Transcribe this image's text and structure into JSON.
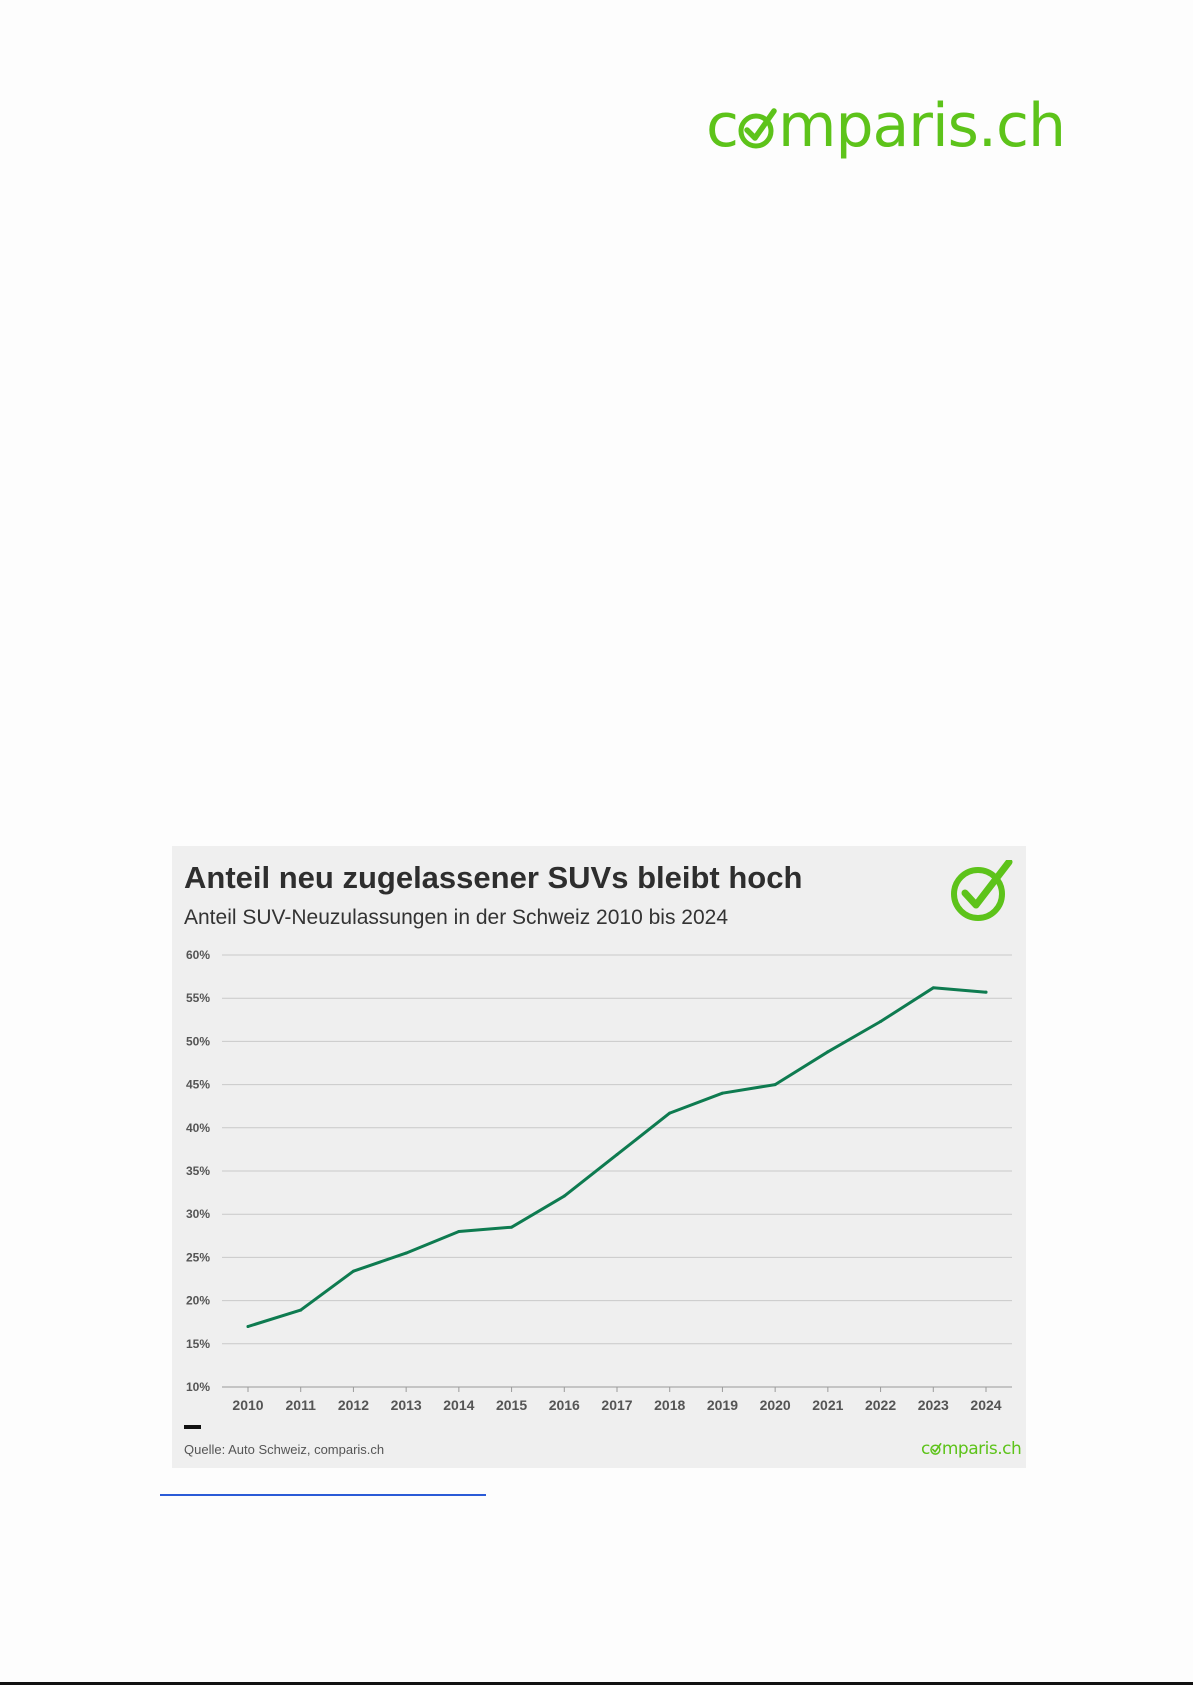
{
  "header": {
    "logo_pre": "c",
    "logo_post": "mparis.ch"
  },
  "colors": {
    "brand_green": "#5dc31a",
    "series_line": "#0e7b50",
    "grid": "#c9c9c9",
    "card_bg": "#efefef"
  },
  "chart_data": {
    "type": "line",
    "title": "Anteil neu zugelassener SUVs bleibt hoch",
    "subtitle": "Anteil SUV-Neuzulassungen in der Schweiz 2010 bis 2024",
    "xlabel": "",
    "ylabel": "",
    "x": [
      "2010",
      "2011",
      "2012",
      "2013",
      "2014",
      "2015",
      "2016",
      "2017",
      "2018",
      "2019",
      "2020",
      "2021",
      "2022",
      "2023",
      "2024"
    ],
    "y_ticks": [
      "10%",
      "15%",
      "20%",
      "25%",
      "30%",
      "35%",
      "40%",
      "45%",
      "50%",
      "55%",
      "60%"
    ],
    "ylim": [
      10,
      60
    ],
    "grid": true,
    "series": [
      {
        "values": [
          17.0,
          18.9,
          23.4,
          25.5,
          28.0,
          28.5,
          32.1,
          36.9,
          41.7,
          44.0,
          45.0,
          48.8,
          52.3,
          56.2,
          55.7
        ],
        "color": "#0e7b50"
      }
    ],
    "source": "Quelle: Auto Schweiz, comparis.ch",
    "footer_logo_pre": "c",
    "footer_logo_post": "mparis.ch"
  }
}
